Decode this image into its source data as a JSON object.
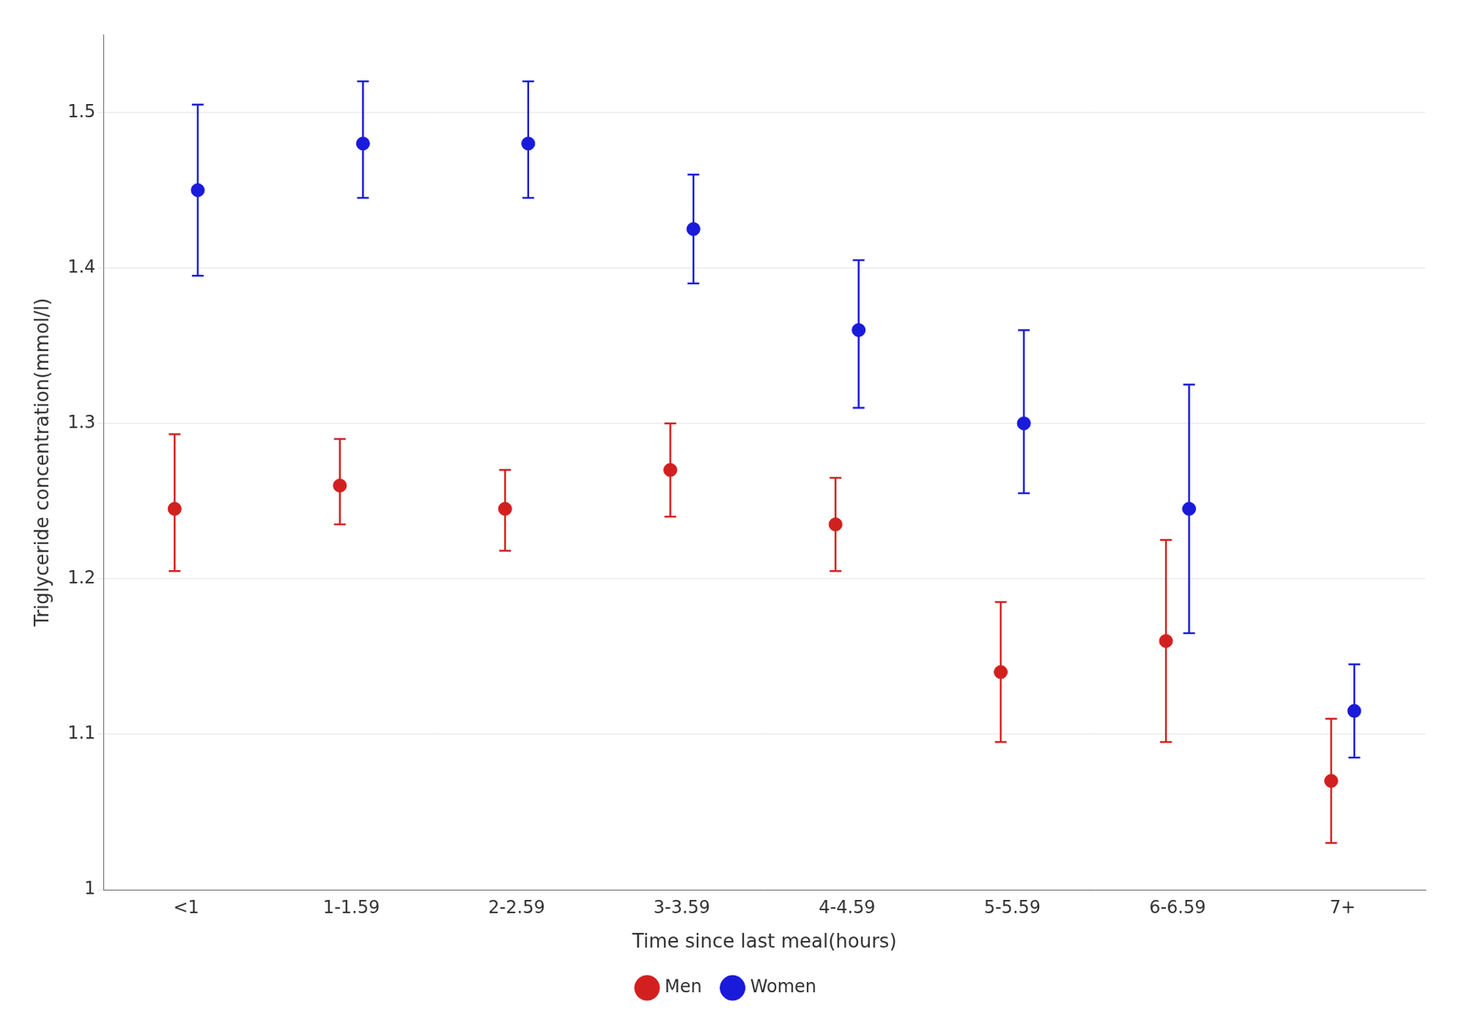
{
  "chart_data": {
    "type": "errorbar",
    "xlabel": "Time since last meal(hours)",
    "ylabel": "Triglyceride concentration(mmol/l)",
    "categories": [
      "<1",
      "1-1.59",
      "2-2.59",
      "3-3.59",
      "4-4.59",
      "5-5.59",
      "6-6.59",
      "7+"
    ],
    "series": [
      {
        "name": "Men",
        "color": "#d22020",
        "marker": "circle",
        "values": [
          1.245,
          1.26,
          1.245,
          1.27,
          1.235,
          1.14,
          1.16,
          1.07
        ],
        "lower": [
          1.205,
          1.235,
          1.218,
          1.24,
          1.205,
          1.095,
          1.095,
          1.03
        ],
        "upper": [
          1.293,
          1.29,
          1.27,
          1.3,
          1.265,
          1.185,
          1.225,
          1.11
        ]
      },
      {
        "name": "Women",
        "color": "#1a1adb",
        "marker": "circle",
        "values": [
          1.45,
          1.48,
          1.48,
          1.425,
          1.36,
          1.3,
          1.245,
          1.115
        ],
        "lower": [
          1.395,
          1.445,
          1.445,
          1.39,
          1.31,
          1.255,
          1.165,
          1.085
        ],
        "upper": [
          1.505,
          1.52,
          1.52,
          1.46,
          1.405,
          1.36,
          1.325,
          1.145
        ]
      }
    ],
    "ylim": [
      1.0,
      1.55
    ],
    "yticks": [
      1.0,
      1.1,
      1.2,
      1.3,
      1.4,
      1.5
    ],
    "grid": true,
    "legend": "bottom"
  }
}
